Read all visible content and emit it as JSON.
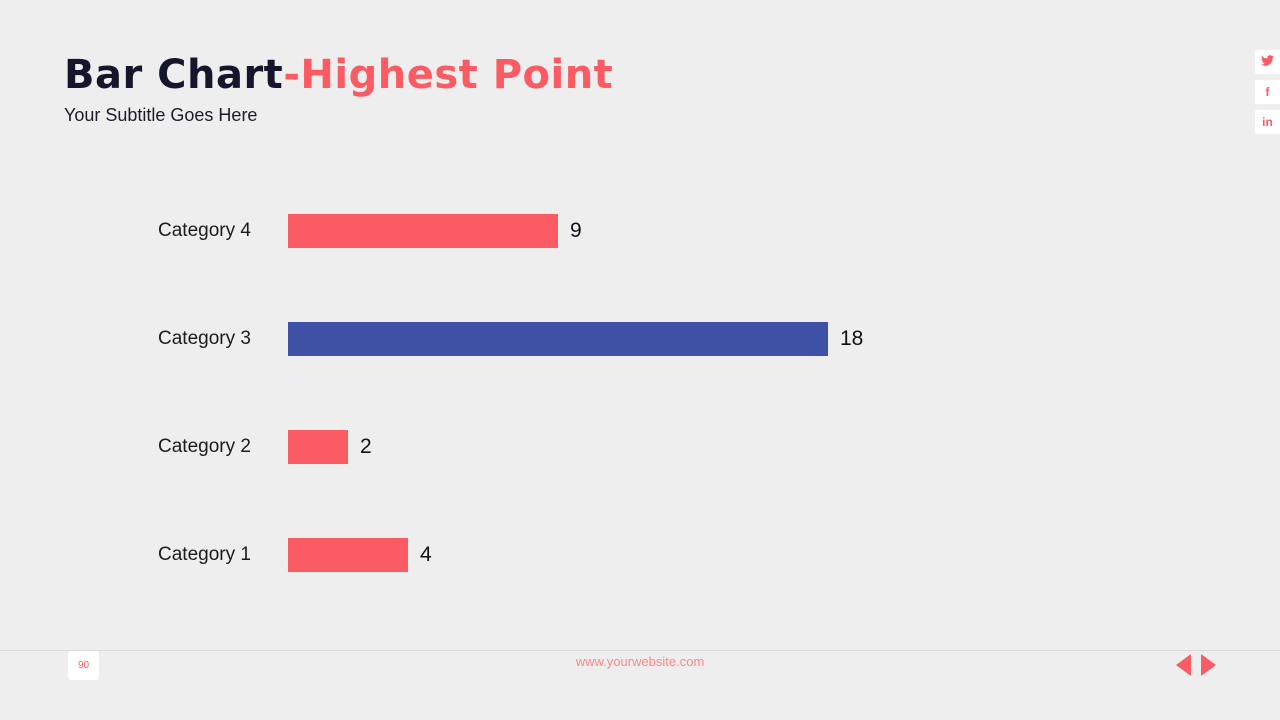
{
  "slide": {
    "title_primary": "Bar Chart",
    "title_accent": "-Highest Point",
    "subtitle": "Your Subtitle Goes Here"
  },
  "social": {
    "facebook_glyph": "f",
    "linkedin_glyph": "in"
  },
  "chart_data": {
    "type": "bar",
    "orientation": "horizontal",
    "title": "Bar Chart-Highest Point",
    "categories": [
      "Category 4",
      "Category 3",
      "Category 2",
      "Category 1"
    ],
    "values": [
      9,
      18,
      2,
      4
    ],
    "bar_colors": [
      "#FB5B62",
      "#3F51A5",
      "#FB5B62",
      "#FB5B62"
    ],
    "highlight_category": "Category 3",
    "xlim": [
      0,
      18
    ],
    "value_labels": true,
    "grid": false,
    "legend": false
  },
  "footer": {
    "page_number": "90",
    "website": "www.yourwebsite.com"
  },
  "colors": {
    "background": "#EFEEEE",
    "accent": "#FB5B62",
    "highlight": "#3F51A5",
    "title_dark": "#15152B"
  }
}
